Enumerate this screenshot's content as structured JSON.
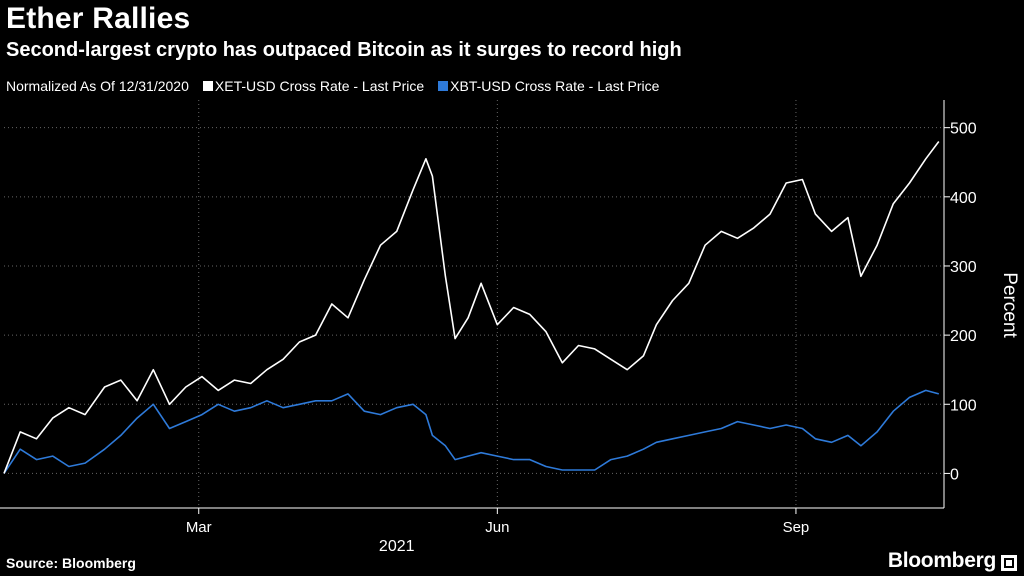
{
  "header": {
    "title": "Ether Rallies",
    "subtitle": "Second-largest crypto has outpaced Bitcoin as it surges to record high"
  },
  "legend": {
    "note": "Normalized As Of 12/31/2020",
    "items": [
      {
        "label": "XET-USD Cross Rate - Last Price",
        "color": "#ffffff"
      },
      {
        "label": "XBT-USD Cross Rate - Last Price",
        "color": "#2e7ad9"
      }
    ]
  },
  "footer": {
    "source": "Source: Bloomberg",
    "logo": "Bloomberg"
  },
  "chart_data": {
    "type": "line",
    "ylabel": "Percent",
    "xlabel": "2021",
    "ylim": [
      -50,
      540
    ],
    "yticks": [
      0,
      100,
      200,
      300,
      400,
      500
    ],
    "xlim": [
      "2020-12-31",
      "2021-10-16"
    ],
    "xticks": [
      {
        "label": "Mar",
        "date": "2021-03-01"
      },
      {
        "label": "Jun",
        "date": "2021-06-01"
      },
      {
        "label": "Sep",
        "date": "2021-09-01"
      }
    ],
    "grid": true,
    "series": [
      {
        "name": "XET-USD Cross Rate - Last Price",
        "color": "#ffffff",
        "x": [
          "2020-12-31",
          "2021-01-05",
          "2021-01-10",
          "2021-01-15",
          "2021-01-20",
          "2021-01-25",
          "2021-01-31",
          "2021-02-05",
          "2021-02-10",
          "2021-02-15",
          "2021-02-20",
          "2021-02-25",
          "2021-03-02",
          "2021-03-07",
          "2021-03-12",
          "2021-03-17",
          "2021-03-22",
          "2021-03-27",
          "2021-04-01",
          "2021-04-06",
          "2021-04-11",
          "2021-04-16",
          "2021-04-21",
          "2021-04-26",
          "2021-05-01",
          "2021-05-06",
          "2021-05-10",
          "2021-05-12",
          "2021-05-16",
          "2021-05-19",
          "2021-05-23",
          "2021-05-27",
          "2021-06-01",
          "2021-06-06",
          "2021-06-11",
          "2021-06-16",
          "2021-06-21",
          "2021-06-26",
          "2021-07-01",
          "2021-07-06",
          "2021-07-11",
          "2021-07-16",
          "2021-07-20",
          "2021-07-25",
          "2021-07-30",
          "2021-08-04",
          "2021-08-09",
          "2021-08-14",
          "2021-08-19",
          "2021-08-24",
          "2021-08-29",
          "2021-09-03",
          "2021-09-07",
          "2021-09-12",
          "2021-09-17",
          "2021-09-21",
          "2021-09-26",
          "2021-10-01",
          "2021-10-06",
          "2021-10-11",
          "2021-10-15"
        ],
        "values": [
          0,
          60,
          50,
          80,
          95,
          85,
          125,
          135,
          105,
          150,
          100,
          125,
          140,
          120,
          135,
          130,
          150,
          165,
          190,
          200,
          245,
          225,
          280,
          330,
          350,
          410,
          455,
          430,
          285,
          195,
          225,
          275,
          215,
          240,
          230,
          205,
          160,
          185,
          180,
          165,
          150,
          170,
          215,
          250,
          275,
          330,
          350,
          340,
          355,
          375,
          420,
          425,
          375,
          350,
          370,
          285,
          330,
          390,
          420,
          455,
          480
        ]
      },
      {
        "name": "XBT-USD Cross Rate - Last Price",
        "color": "#2e7ad9",
        "x": [
          "2020-12-31",
          "2021-01-05",
          "2021-01-10",
          "2021-01-15",
          "2021-01-20",
          "2021-01-25",
          "2021-01-31",
          "2021-02-05",
          "2021-02-10",
          "2021-02-15",
          "2021-02-20",
          "2021-02-25",
          "2021-03-02",
          "2021-03-07",
          "2021-03-12",
          "2021-03-17",
          "2021-03-22",
          "2021-03-27",
          "2021-04-01",
          "2021-04-06",
          "2021-04-11",
          "2021-04-16",
          "2021-04-21",
          "2021-04-26",
          "2021-05-01",
          "2021-05-06",
          "2021-05-10",
          "2021-05-12",
          "2021-05-16",
          "2021-05-19",
          "2021-05-23",
          "2021-05-27",
          "2021-06-01",
          "2021-06-06",
          "2021-06-11",
          "2021-06-16",
          "2021-06-21",
          "2021-06-26",
          "2021-07-01",
          "2021-07-06",
          "2021-07-11",
          "2021-07-16",
          "2021-07-20",
          "2021-07-25",
          "2021-07-30",
          "2021-08-04",
          "2021-08-09",
          "2021-08-14",
          "2021-08-19",
          "2021-08-24",
          "2021-08-29",
          "2021-09-03",
          "2021-09-07",
          "2021-09-12",
          "2021-09-17",
          "2021-09-21",
          "2021-09-26",
          "2021-10-01",
          "2021-10-06",
          "2021-10-11",
          "2021-10-15"
        ],
        "values": [
          0,
          35,
          20,
          25,
          10,
          15,
          35,
          55,
          80,
          100,
          65,
          75,
          85,
          100,
          90,
          95,
          105,
          95,
          100,
          105,
          105,
          115,
          90,
          85,
          95,
          100,
          85,
          55,
          40,
          20,
          25,
          30,
          25,
          20,
          20,
          10,
          5,
          5,
          5,
          20,
          25,
          35,
          45,
          50,
          55,
          60,
          65,
          75,
          70,
          65,
          70,
          65,
          50,
          45,
          55,
          40,
          60,
          90,
          110,
          120,
          115
        ]
      }
    ]
  }
}
